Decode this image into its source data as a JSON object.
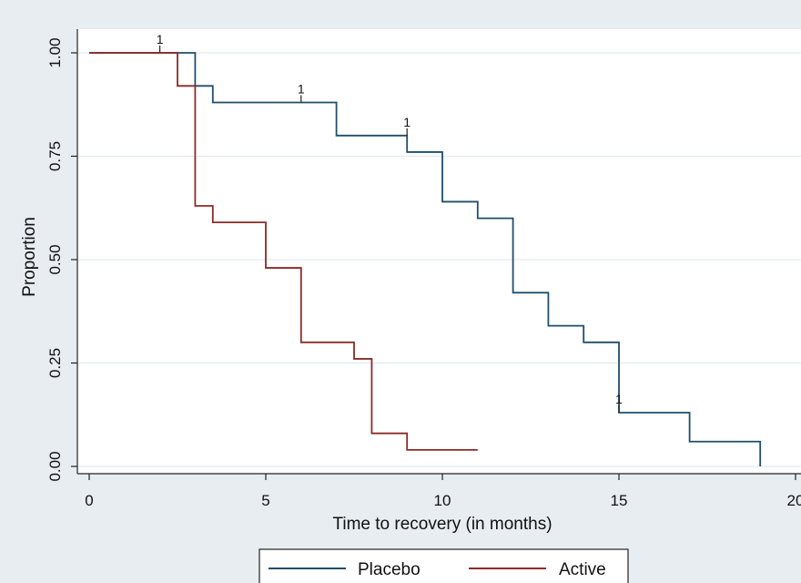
{
  "chart_data": {
    "type": "line",
    "step": true,
    "xlabel": "Time to recovery (in months)",
    "ylabel": "Proportion",
    "xlim": [
      0,
      20
    ],
    "ylim": [
      0,
      1
    ],
    "x_ticks": [
      0,
      5,
      10,
      15,
      20
    ],
    "x_tick_labels": [
      "0",
      "5",
      "10",
      "15",
      "20"
    ],
    "y_ticks": [
      0,
      0.25,
      0.5,
      0.75,
      1
    ],
    "y_tick_labels": [
      "0.00",
      "0.25",
      "0.50",
      "0.75",
      "1.00"
    ],
    "grid": true,
    "legend_position": "bottom",
    "series": [
      {
        "name": "Placebo",
        "color": "#1f4e6b",
        "x": [
          0,
          3,
          3.5,
          7,
          9,
          10,
          11,
          12,
          13,
          14,
          15,
          17,
          19
        ],
        "y": [
          1.0,
          0.92,
          0.88,
          0.8,
          0.76,
          0.64,
          0.6,
          0.42,
          0.34,
          0.3,
          0.13,
          0.06,
          0.0
        ],
        "censored": [
          {
            "x": 2,
            "y": 1.0,
            "label": "1"
          },
          {
            "x": 6,
            "y": 0.88,
            "label": "1"
          },
          {
            "x": 9,
            "y": 0.8,
            "label": "1"
          },
          {
            "x": 15,
            "y": 0.13,
            "label": "1"
          }
        ]
      },
      {
        "name": "Active",
        "color": "#8b2b26",
        "x": [
          0,
          2.5,
          3,
          3.5,
          5,
          6,
          7.5,
          8,
          9,
          11
        ],
        "y": [
          1.0,
          0.92,
          0.63,
          0.59,
          0.48,
          0.3,
          0.26,
          0.08,
          0.04,
          0.04
        ],
        "censored": []
      }
    ]
  }
}
